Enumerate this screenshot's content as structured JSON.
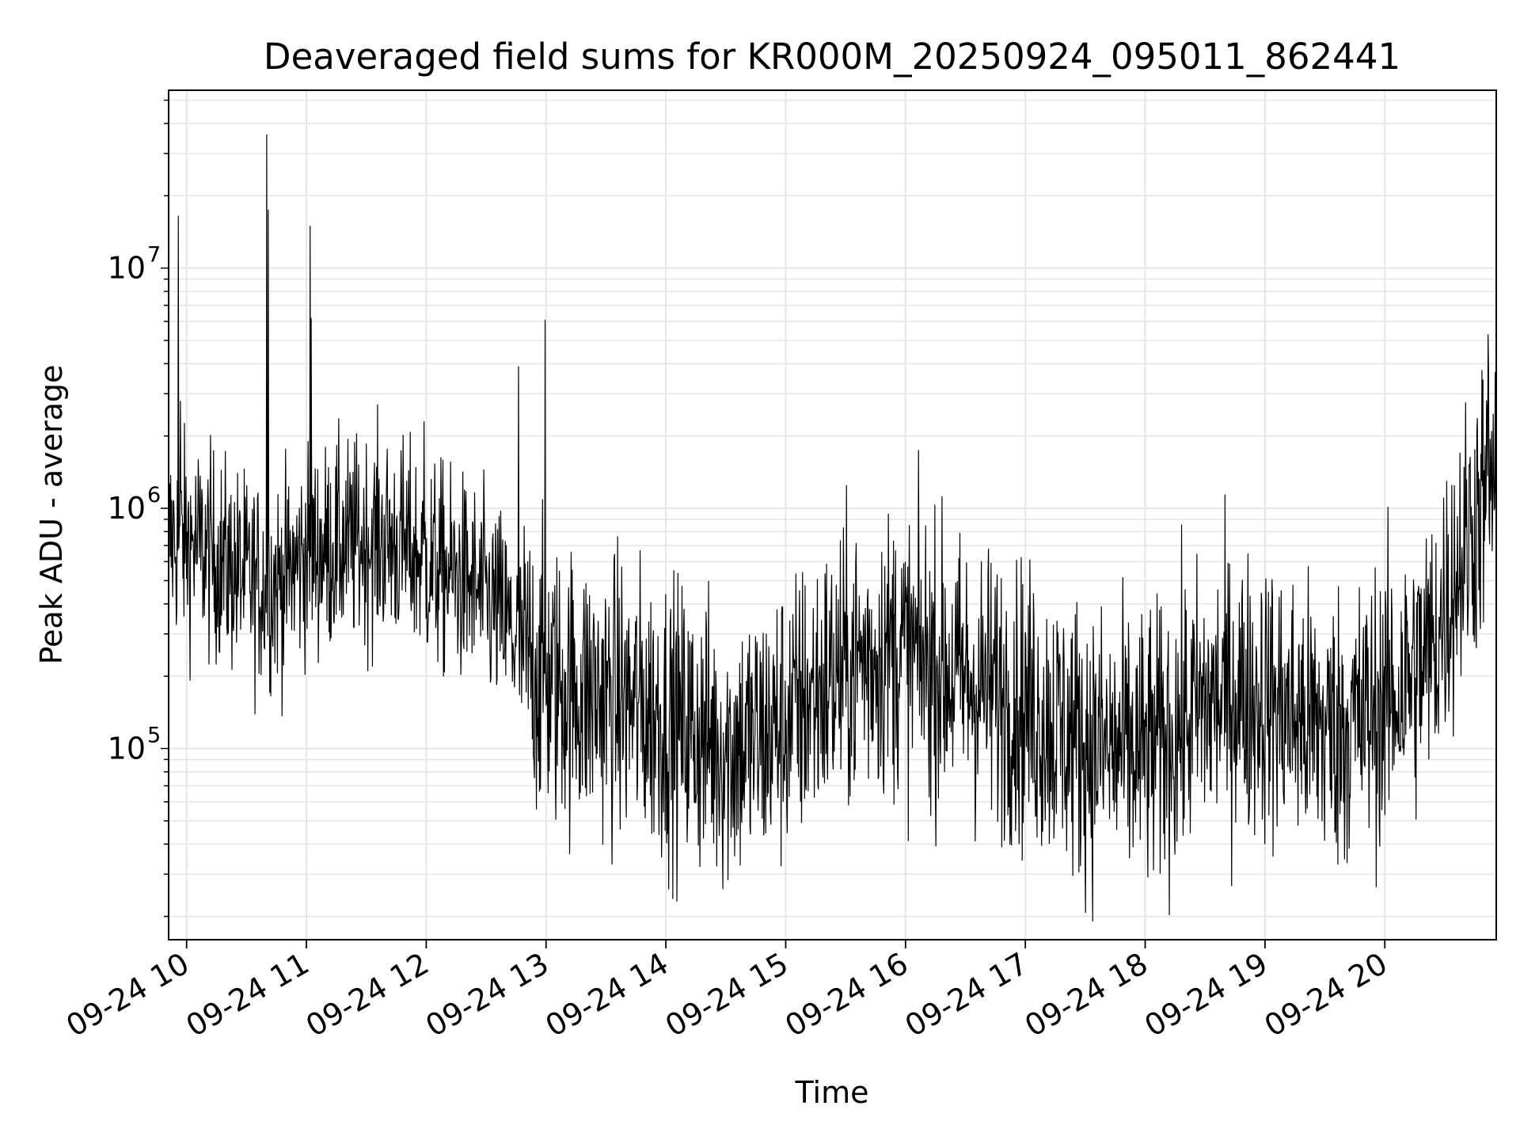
{
  "chart_data": {
    "type": "line",
    "title": "Deaveraged field sums for KR000M_20250924_095011_862441",
    "xlabel": "Time",
    "ylabel": "Peak ADU - average",
    "yscale": "log",
    "ylim": [
      16000,
      55000000
    ],
    "xlim_hours": [
      9.85,
      20.93
    ],
    "grid": true,
    "line_color": "#000000",
    "grid_color": "#e6e6e6",
    "x_ticks": [
      {
        "value": 10,
        "label": "09-24 10"
      },
      {
        "value": 11,
        "label": "09-24 11"
      },
      {
        "value": 12,
        "label": "09-24 12"
      },
      {
        "value": 13,
        "label": "09-24 13"
      },
      {
        "value": 14,
        "label": "09-24 14"
      },
      {
        "value": 15,
        "label": "09-24 15"
      },
      {
        "value": 16,
        "label": "09-24 16"
      },
      {
        "value": 17,
        "label": "09-24 17"
      },
      {
        "value": 18,
        "label": "09-24 18"
      },
      {
        "value": 19,
        "label": "09-24 19"
      },
      {
        "value": 20,
        "label": "09-24 20"
      }
    ],
    "y_ticks": [
      {
        "value": 100000,
        "base": "10",
        "exp": "5"
      },
      {
        "value": 1000000,
        "base": "10",
        "exp": "6"
      },
      {
        "value": 10000000,
        "base": "10",
        "exp": "7"
      }
    ],
    "series": [
      {
        "name": "Peak ADU - average",
        "n_points": 2600,
        "baseline": [
          [
            9.85,
            750000
          ],
          [
            10.1,
            700000
          ],
          [
            10.4,
            550000
          ],
          [
            10.6,
            480000
          ],
          [
            10.8,
            500000
          ],
          [
            11.0,
            650000
          ],
          [
            11.3,
            700000
          ],
          [
            11.6,
            750000
          ],
          [
            11.8,
            700000
          ],
          [
            12.0,
            600000
          ],
          [
            12.3,
            500000
          ],
          [
            12.6,
            380000
          ],
          [
            12.8,
            250000
          ],
          [
            13.0,
            190000
          ],
          [
            13.3,
            170000
          ],
          [
            13.6,
            160000
          ],
          [
            13.9,
            140000
          ],
          [
            14.2,
            120000
          ],
          [
            14.5,
            100000
          ],
          [
            14.8,
            110000
          ],
          [
            15.0,
            130000
          ],
          [
            15.3,
            180000
          ],
          [
            15.6,
            230000
          ],
          [
            15.9,
            260000
          ],
          [
            16.2,
            230000
          ],
          [
            16.5,
            190000
          ],
          [
            16.8,
            170000
          ],
          [
            17.0,
            150000
          ],
          [
            17.3,
            120000
          ],
          [
            17.6,
            100000
          ],
          [
            17.9,
            95000
          ],
          [
            18.1,
            100000
          ],
          [
            18.4,
            140000
          ],
          [
            18.7,
            170000
          ],
          [
            19.0,
            160000
          ],
          [
            19.2,
            140000
          ],
          [
            19.5,
            120000
          ],
          [
            19.8,
            130000
          ],
          [
            20.1,
            170000
          ],
          [
            20.4,
            260000
          ],
          [
            20.6,
            550000
          ],
          [
            20.8,
            1050000
          ],
          [
            20.93,
            1350000
          ]
        ],
        "spikes": [
          {
            "t": 9.93,
            "value": 16500000
          },
          {
            "t": 9.95,
            "value": 2800000
          },
          {
            "t": 10.67,
            "value": 36000000
          },
          {
            "t": 10.68,
            "value": 17500000
          },
          {
            "t": 11.03,
            "value": 15000000
          },
          {
            "t": 11.04,
            "value": 6200000
          },
          {
            "t": 11.98,
            "value": 2300000
          },
          {
            "t": 12.77,
            "value": 3900000
          },
          {
            "t": 12.99,
            "value": 6100000
          },
          {
            "t": 20.86,
            "value": 5300000
          },
          {
            "t": 20.92,
            "value": 3700000
          }
        ]
      }
    ]
  }
}
